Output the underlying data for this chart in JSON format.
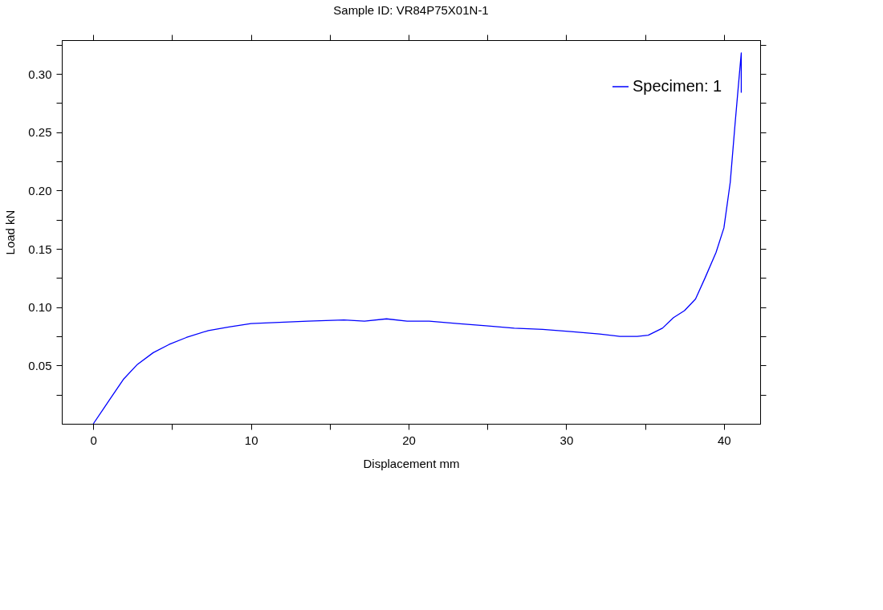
{
  "chart_data": {
    "type": "line",
    "title": "Sample ID: VR84P75X01N-1",
    "xlabel": "Displacement mm",
    "ylabel": "Load kN",
    "xlim": [
      -2,
      42.3
    ],
    "ylim": [
      0,
      0.329
    ],
    "xticks": [
      0,
      {
        "value": 5,
        "label": null
      },
      10,
      {
        "value": 15,
        "label": null
      },
      20,
      {
        "value": 25,
        "label": null
      },
      30,
      {
        "value": 35,
        "label": null
      },
      40
    ],
    "yticks": [
      {
        "value": 0.025,
        "label": null
      },
      {
        "value": 0.05,
        "label": "0.05"
      },
      {
        "value": 0.075,
        "label": null
      },
      {
        "value": 0.1,
        "label": "0.10"
      },
      {
        "value": 0.125,
        "label": null
      },
      {
        "value": 0.15,
        "label": "0.15"
      },
      {
        "value": 0.175,
        "label": null
      },
      {
        "value": 0.2,
        "label": "0.20"
      },
      {
        "value": 0.225,
        "label": null
      },
      {
        "value": 0.25,
        "label": "0.25"
      },
      {
        "value": 0.275,
        "label": null
      },
      {
        "value": 0.3,
        "label": "0.30"
      },
      {
        "value": 0.325,
        "label": null
      }
    ],
    "grid": false,
    "legend": "top right",
    "marker": "none",
    "line_style": "solid",
    "series": [
      {
        "name": "Specimen: 1",
        "color": "#0000ff",
        "x": [
          0,
          1.0,
          1.9,
          2.8,
          3.8,
          4.8,
          5.9,
          7.3,
          8.6,
          10.0,
          11.8,
          13.6,
          15.9,
          17.2,
          18.6,
          19.9,
          21.3,
          23.1,
          24.9,
          26.7,
          28.5,
          30.3,
          32.1,
          33.4,
          34.5,
          35.2,
          36.1,
          36.8,
          37.5,
          38.2,
          38.8,
          39.5,
          40.0,
          40.4,
          40.7,
          40.95,
          41.1,
          41.1
        ],
        "values": [
          0,
          0.02,
          0.038,
          0.051,
          0.061,
          0.068,
          0.074,
          0.08,
          0.083,
          0.086,
          0.087,
          0.088,
          0.089,
          0.088,
          0.09,
          0.088,
          0.088,
          0.086,
          0.084,
          0.082,
          0.081,
          0.079,
          0.077,
          0.075,
          0.075,
          0.076,
          0.082,
          0.091,
          0.097,
          0.107,
          0.125,
          0.147,
          0.168,
          0.207,
          0.256,
          0.295,
          0.318,
          0.284
        ]
      }
    ]
  }
}
